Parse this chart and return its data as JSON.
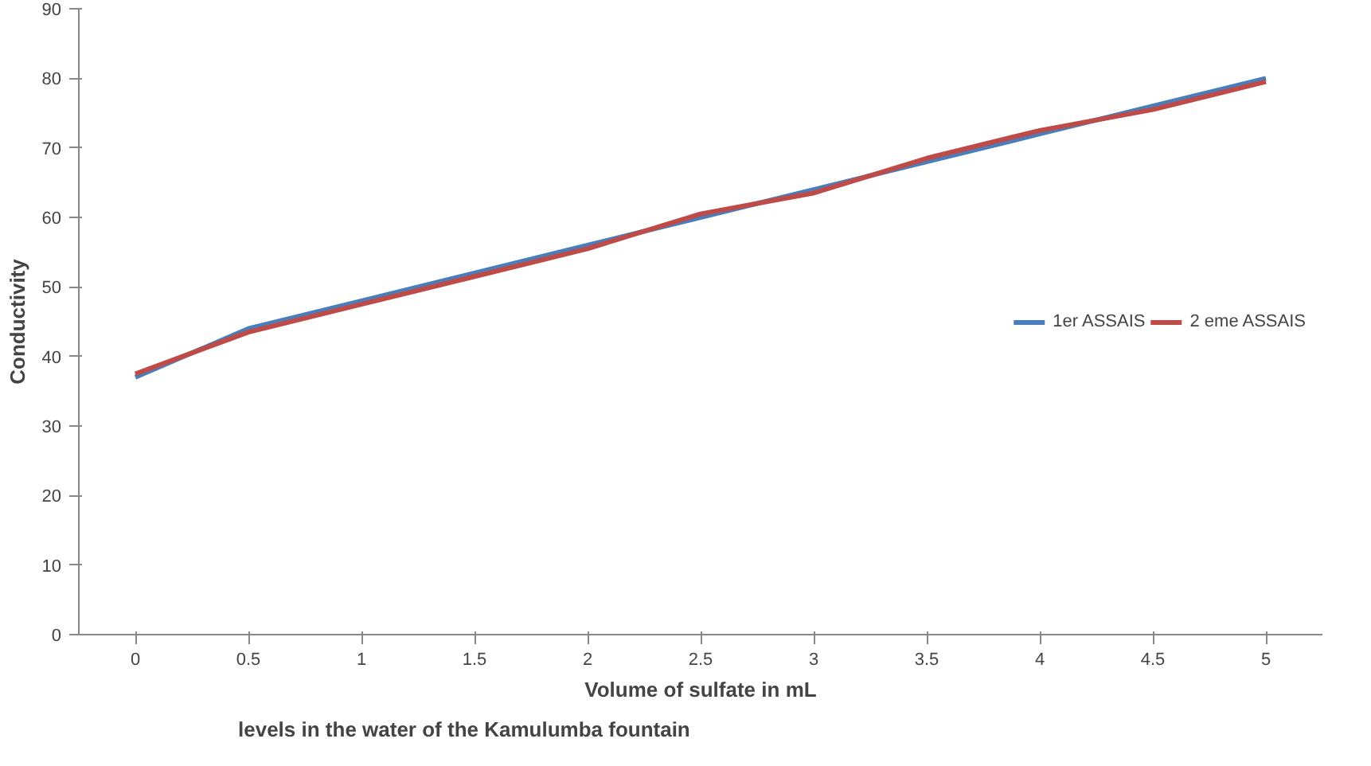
{
  "chart_data": {
    "type": "line",
    "xlabel": "Volume of sulfate in mL",
    "ylabel": "Conductivity",
    "annotations": [
      "levels in the water of the Kamulumba fountain"
    ],
    "categories": [
      "0",
      "0.5",
      "1",
      "1.5",
      "2",
      "2.5",
      "3",
      "3.5",
      "4",
      "4.5",
      "5"
    ],
    "series": [
      {
        "name": "1er ASSAIS",
        "color": "#4a7ebb",
        "values": [
          37,
          44,
          48,
          52,
          56,
          60,
          64,
          68,
          72,
          76,
          80
        ]
      },
      {
        "name": "2 eme ASSAIS",
        "color": "#be4b48",
        "values": [
          37.5,
          43.5,
          47.5,
          51.5,
          55.5,
          60.5,
          63.5,
          68.5,
          72.5,
          75.5,
          79.5
        ]
      }
    ],
    "ylim": [
      0,
      90
    ],
    "yticks": [
      0,
      10,
      20,
      30,
      40,
      50,
      60,
      70,
      80,
      90
    ],
    "grid": false,
    "legend": "right",
    "marker": "none",
    "line_style": "solid"
  }
}
